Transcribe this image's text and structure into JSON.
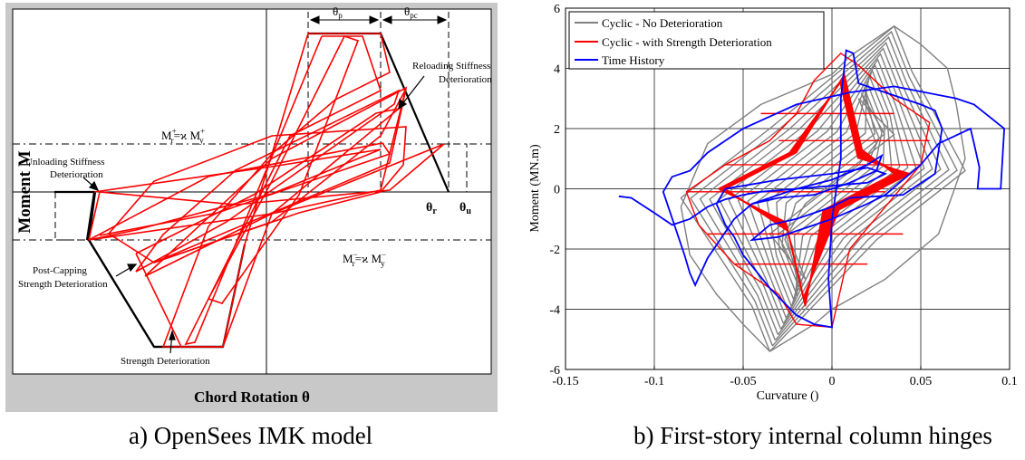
{
  "captions": {
    "left": "a)  OpenSees IMK model",
    "right": "b)  First-story internal column hinges"
  },
  "chart_data": [
    {
      "type": "line",
      "panel": "left",
      "xlabel": "Chord Rotation  θ",
      "ylabel": "Moment M",
      "grid": false,
      "annotations": {
        "theta_p": "θ",
        "theta_p_sub": "p",
        "theta_pc": "θ",
        "theta_pc_sub": "pc",
        "theta_r": "θ",
        "theta_r_sub": "r",
        "theta_u": "θ",
        "theta_u_sub": "u",
        "mr_pos": "M+r=ϰ M+y",
        "mr_neg": "M−r=ϰ M−y",
        "reloading_1": "Reloading Stiffness",
        "reloading_2": "Deterioration",
        "unloading_1": "Unloading Stiffness",
        "unloading_2": "Deterioration",
        "postcap_1": "Post-Capping",
        "postcap_2": "Strength Deterioration",
        "strength": "Strength Deterioration"
      },
      "colors": {
        "hysteresis": "#ff0000",
        "envelope": "#000000",
        "frame_bg": "#c8c8c8"
      }
    },
    {
      "type": "line",
      "panel": "right",
      "xlabel": "Curvature ()",
      "ylabel": "Moment (MN.m)",
      "xlim": [
        -0.15,
        0.1
      ],
      "ylim": [
        -6,
        6
      ],
      "xticks": [
        "-0.15",
        "-0.1",
        "-0.05",
        "0",
        "0.05",
        "0.1"
      ],
      "yticks": [
        "-6",
        "-4",
        "-2",
        "0",
        "2",
        "4",
        "6"
      ],
      "grid": true,
      "legend_position": "top-left",
      "series": [
        {
          "name": "Cyclic - No Deterioration",
          "color": "#808080",
          "envelope": [
            [
              -0.035,
              -5.4
            ],
            [
              -0.05,
              -4.5
            ],
            [
              -0.065,
              -3.5
            ],
            [
              -0.08,
              -2.2
            ],
            [
              -0.085,
              -0.6
            ],
            [
              -0.07,
              1.5
            ],
            [
              -0.04,
              2.8
            ],
            [
              0,
              3.8
            ],
            [
              0.01,
              4.4
            ],
            [
              0.035,
              5.4
            ],
            [
              0.05,
              4.8
            ],
            [
              0.065,
              4.0
            ],
            [
              0.07,
              2.8
            ],
            [
              0.075,
              1.0
            ],
            [
              0.06,
              -1.5
            ],
            [
              0.03,
              -3
            ],
            [
              0,
              -4
            ],
            [
              -0.01,
              -4.5
            ],
            [
              -0.035,
              -5.4
            ]
          ]
        },
        {
          "name": "Cyclic - with Strength Deterioration",
          "color": "#ff0000",
          "envelope": [
            [
              -0.082,
              -0.1
            ],
            [
              -0.075,
              -1.2
            ],
            [
              -0.055,
              -2.5
            ],
            [
              -0.03,
              -3.5
            ],
            [
              -0.02,
              -4.5
            ],
            [
              0,
              -4.6
            ],
            [
              0.01,
              -2
            ],
            [
              0.03,
              -0.6
            ],
            [
              0.05,
              0.8
            ],
            [
              0.055,
              2.2
            ],
            [
              0.035,
              3.0
            ],
            [
              0.015,
              4.1
            ],
            [
              0.005,
              4.5
            ],
            [
              -0.01,
              3.6
            ],
            [
              -0.02,
              2.5
            ],
            [
              -0.035,
              1.6
            ],
            [
              -0.06,
              0.8
            ],
            [
              -0.082,
              -0.1
            ]
          ]
        },
        {
          "name": "Time History",
          "color": "#0000ff",
          "points": [
            [
              -0.12,
              -0.25
            ],
            [
              -0.113,
              -0.3
            ],
            [
              -0.1,
              -0.8
            ],
            [
              -0.09,
              -1.2
            ],
            [
              -0.08,
              -1.0
            ],
            [
              -0.07,
              -0.6
            ],
            [
              -0.06,
              -0.35
            ],
            [
              -0.05,
              -0.2
            ],
            [
              -0.04,
              -0.1
            ],
            [
              -0.03,
              -0.05
            ],
            [
              0.0,
              0.1
            ],
            [
              0.02,
              0.2
            ],
            [
              0.03,
              0.5
            ],
            [
              0.02,
              0.7
            ],
            [
              0.0,
              0.5
            ],
            [
              -0.03,
              0.3
            ],
            [
              -0.06,
              0.0
            ],
            [
              -0.065,
              -0.5
            ],
            [
              -0.06,
              -1.2
            ],
            [
              -0.055,
              -1.6
            ],
            [
              -0.05,
              -2.2
            ],
            [
              -0.035,
              -3.3
            ],
            [
              -0.02,
              -4.2
            ],
            [
              -0.01,
              -4.5
            ],
            [
              0.0,
              -4.6
            ],
            [
              -0.002,
              -3.0
            ],
            [
              0.0,
              -1.0
            ],
            [
              0.005,
              1.0
            ],
            [
              0.005,
              3.0
            ],
            [
              0.008,
              4.6
            ],
            [
              0.012,
              4.5
            ],
            [
              0.015,
              3.5
            ],
            [
              0.03,
              3.2
            ],
            [
              0.05,
              2.8
            ],
            [
              0.058,
              2.6
            ],
            [
              0.062,
              2.0
            ],
            [
              0.058,
              0.5
            ],
            [
              0.04,
              -0.2
            ],
            [
              0.01,
              -0.3
            ],
            [
              0.0,
              -0.6
            ],
            [
              -0.01,
              -0.8
            ],
            [
              -0.02,
              -1.0
            ],
            [
              -0.035,
              -1.2
            ],
            [
              -0.045,
              -1.7
            ],
            [
              -0.03,
              -1.6
            ],
            [
              0.0,
              -1.0
            ],
            [
              0.02,
              -0.5
            ],
            [
              0.03,
              -0.2
            ],
            [
              0.04,
              0.3
            ],
            [
              0.05,
              0.8
            ],
            [
              0.06,
              1.5
            ],
            [
              0.078,
              2.0
            ],
            [
              0.08,
              1.5
            ],
            [
              0.083,
              0.7
            ],
            [
              0.082,
              0.0
            ],
            [
              0.095,
              0.0
            ],
            [
              0.097,
              2.0
            ],
            [
              0.08,
              2.8
            ],
            [
              0.07,
              3.0
            ],
            [
              0.035,
              3.4
            ],
            [
              0.01,
              3.2
            ],
            [
              -0.02,
              2.8
            ],
            [
              -0.05,
              2.0
            ],
            [
              -0.07,
              1.2
            ],
            [
              -0.08,
              0.6
            ],
            [
              -0.09,
              0.4
            ],
            [
              -0.095,
              -0.1
            ],
            [
              -0.083,
              -2.2
            ],
            [
              -0.08,
              -2.8
            ],
            [
              -0.077,
              -3.2
            ],
            [
              -0.07,
              -2.3
            ],
            [
              -0.055,
              -1.0
            ],
            [
              -0.045,
              -0.5
            ],
            [
              -0.03,
              -0.2
            ],
            [
              -0.02,
              0.0
            ],
            [
              0.0,
              0.3
            ],
            [
              0.02,
              0.8
            ],
            [
              0.028,
              1.1
            ],
            [
              0.025,
              0.6
            ],
            [
              0.01,
              0.2
            ],
            [
              -0.01,
              -0.2
            ],
            [
              -0.03,
              -0.3
            ],
            [
              -0.045,
              -0.5
            ]
          ]
        }
      ]
    }
  ]
}
